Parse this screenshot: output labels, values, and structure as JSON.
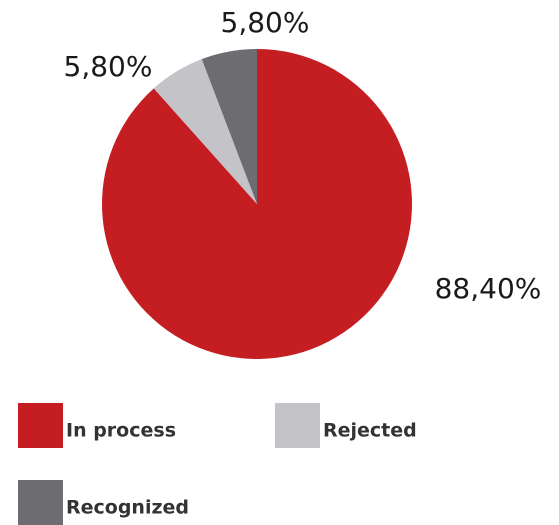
{
  "chart_data": {
    "type": "pie",
    "categories": [
      "In process",
      "Rejected",
      "Recognized"
    ],
    "values": [
      88.4,
      5.8,
      5.8
    ],
    "value_labels": [
      "88,40%",
      "5,80%",
      "5,80%"
    ],
    "colors": [
      "#c41e23",
      "#c4c3c8",
      "#6d6c70"
    ]
  }
}
